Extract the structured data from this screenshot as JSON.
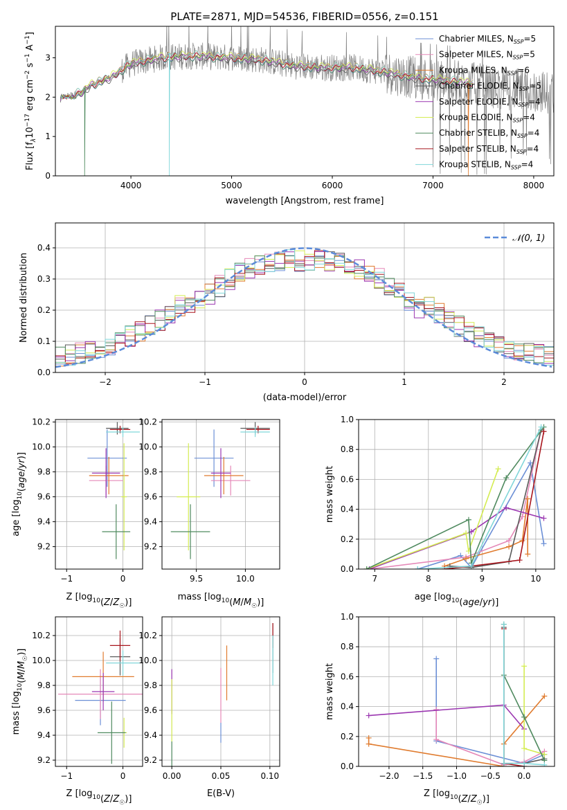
{
  "figure": {
    "title": "PLATE=2871, MJD=54536, FIBERID=0556, z=0.151"
  },
  "palette": {
    "Chabrier MILES": "#6b8fd6",
    "Salpeter MILES": "#e588b8",
    "Kroupa MILES": "#e07b2e",
    "Chabrier ELODIE": "#5a5a5a",
    "Salpeter ELODIE": "#9a35b0",
    "Kroupa ELODIE": "#d4ec52",
    "Chabrier STELIB": "#4f8a5f",
    "Salpeter STELIB": "#a8141c",
    "Kroupa STELIB": "#7fd6d9",
    "data": "#7f7f7f",
    "normal": "#5b8bd9"
  },
  "chart_data": [
    {
      "id": "spectrum",
      "type": "line",
      "xlabel": "wavelength [Angstrom, rest frame]",
      "ylabel_parts": [
        "Flux [f",
        "λ",
        "10",
        "−17",
        " erg cm",
        "−2",
        " s",
        "−1",
        " A",
        "−1",
        "]"
      ],
      "xlim": [
        3250,
        8200
      ],
      "ylim": [
        0,
        3.8
      ],
      "xticks": [
        4000,
        5000,
        6000,
        7000,
        8000
      ],
      "yticks": [
        0,
        1,
        2,
        3
      ],
      "legend_position": "upper right",
      "legend": [
        {
          "model": "Chabrier MILES",
          "n": 5
        },
        {
          "model": "Salpeter MILES",
          "n": 5
        },
        {
          "model": "Kroupa MILES",
          "n": 6
        },
        {
          "model": "Chabrier ELODIE",
          "n": 5
        },
        {
          "model": "Salpeter ELODIE",
          "n": 4
        },
        {
          "model": "Kroupa ELODIE",
          "n": 4
        },
        {
          "model": "Chabrier STELIB",
          "n": 4
        },
        {
          "model": "Salpeter STELIB",
          "n": 4
        },
        {
          "model": "Kroupa STELIB",
          "n": 4
        }
      ],
      "continuum": {
        "x": [
          3300,
          3500,
          3600,
          3800,
          4000,
          4300,
          4600,
          5000,
          5300,
          5600,
          5900,
          6200,
          6500,
          6800,
          7000,
          7200,
          7400,
          7600,
          8000,
          8200
        ],
        "y": [
          2.0,
          2.1,
          2.3,
          2.5,
          2.85,
          3.0,
          3.05,
          3.0,
          2.95,
          2.8,
          2.75,
          2.75,
          2.65,
          2.5,
          2.45,
          2.4,
          2.35,
          2.25,
          2.15,
          2.1
        ]
      },
      "model_range": [
        3300,
        7400
      ],
      "model_dips": [
        {
          "model": "Salpeter STELIB",
          "x": 3520,
          "y": 0.0
        },
        {
          "model": "Chabrier STELIB",
          "x": 3540,
          "y": 0.0
        },
        {
          "model": "Kroupa ELODIE",
          "x": 3920,
          "y": 0.0
        },
        {
          "model": "Kroupa STELIB",
          "x": 4380,
          "y": 0.0
        },
        {
          "model": "Kroupa MILES",
          "x": 6800,
          "y": 0.1
        },
        {
          "model": "Kroupa MILES",
          "x": 7350,
          "y": 0.0
        }
      ]
    },
    {
      "id": "residuals",
      "type": "histogram",
      "xlabel": "(data-model)/error",
      "ylabel": "Normed distribution",
      "xlim": [
        -2.5,
        2.5
      ],
      "ylim": [
        0,
        0.48
      ],
      "xticks": [
        -2,
        -1,
        0,
        1,
        2
      ],
      "yticks": [
        0.0,
        0.1,
        0.2,
        0.3,
        0.4
      ],
      "grid": true,
      "legend_position": "upper right",
      "normal_label": "𝒩(0, 1)",
      "bin_width": 0.1
    },
    {
      "id": "age-vs-Z",
      "type": "errorbar",
      "xlabel": "Z [log10(Z/Z☉)]",
      "ylabel": "age [log10(age/yr)]",
      "xlim": [
        -1.2,
        0.35
      ],
      "ylim": [
        9.02,
        10.22
      ],
      "xticks": [
        -1,
        0
      ],
      "yticks": [
        9.2,
        9.4,
        9.6,
        9.8,
        10.0,
        10.2
      ],
      "points": [
        {
          "model": "Chabrier MILES",
          "x": -0.28,
          "xerr": 0.35,
          "y": 9.91,
          "yerr": 0.23
        },
        {
          "model": "Salpeter MILES",
          "x": -0.3,
          "xerr": 0.3,
          "y": 9.73,
          "yerr": 0.12
        },
        {
          "model": "Kroupa MILES",
          "x": -0.25,
          "xerr": 0.35,
          "y": 9.77,
          "yerr": 0.15
        },
        {
          "model": "Chabrier ELODIE",
          "x": -0.1,
          "xerr": 0.2,
          "y": 10.15,
          "yerr": 0.05
        },
        {
          "model": "Salpeter ELODIE",
          "x": -0.3,
          "xerr": 0.25,
          "y": 9.79,
          "yerr": 0.2
        },
        {
          "model": "Kroupa ELODIE",
          "x": 0.02,
          "xerr": 0.05,
          "y": 9.6,
          "yerr": 0.43
        },
        {
          "model": "Chabrier STELIB",
          "x": -0.12,
          "xerr": 0.25,
          "y": 9.32,
          "yerr": 0.22
        },
        {
          "model": "Salpeter STELIB",
          "x": -0.05,
          "xerr": 0.18,
          "y": 10.14,
          "yerr": 0.03
        },
        {
          "model": "Kroupa STELIB",
          "x": 0.0,
          "xerr": 0.3,
          "y": 10.12,
          "yerr": 0.04
        }
      ]
    },
    {
      "id": "age-vs-mass",
      "type": "errorbar",
      "xlabel": "mass [log10(M/M☉)]",
      "ylabel": "",
      "xlim": [
        9.15,
        10.35
      ],
      "ylim": [
        9.02,
        10.22
      ],
      "xticks": [
        9.5,
        10.0
      ],
      "yticks": [
        9.2,
        9.4,
        9.6,
        9.8,
        10.0,
        10.2
      ],
      "points": [
        {
          "model": "Chabrier MILES",
          "x": 9.68,
          "xerr": 0.2,
          "y": 9.91,
          "yerr": 0.23
        },
        {
          "model": "Salpeter MILES",
          "x": 9.85,
          "xerr": 0.2,
          "y": 9.73,
          "yerr": 0.12
        },
        {
          "model": "Kroupa MILES",
          "x": 9.78,
          "xerr": 0.2,
          "y": 9.77,
          "yerr": 0.15
        },
        {
          "model": "Chabrier ELODIE",
          "x": 10.1,
          "xerr": 0.15,
          "y": 10.15,
          "yerr": 0.05
        },
        {
          "model": "Salpeter ELODIE",
          "x": 9.75,
          "xerr": 0.1,
          "y": 9.79,
          "yerr": 0.2
        },
        {
          "model": "Kroupa ELODIE",
          "x": 9.42,
          "xerr": 0.12,
          "y": 9.6,
          "yerr": 0.43
        },
        {
          "model": "Chabrier STELIB",
          "x": 9.44,
          "xerr": 0.2,
          "y": 9.32,
          "yerr": 0.22
        },
        {
          "model": "Salpeter STELIB",
          "x": 10.13,
          "xerr": 0.12,
          "y": 10.14,
          "yerr": 0.03
        },
        {
          "model": "Kroupa STELIB",
          "x": 10.1,
          "xerr": 0.15,
          "y": 10.12,
          "yerr": 0.04
        }
      ]
    },
    {
      "id": "weight-vs-age",
      "type": "line",
      "xlabel": "age [log10(age/yr)]",
      "ylabel": "mass weight",
      "xlim": [
        6.7,
        10.35
      ],
      "ylim": [
        0,
        1.0
      ],
      "xticks": [
        7,
        8,
        9,
        10
      ],
      "yticks": [
        0.0,
        0.2,
        0.4,
        0.6,
        0.8,
        1.0
      ],
      "grid": true,
      "series": [
        {
          "model": "Chabrier MILES",
          "x": [
            7.8,
            8.6,
            8.8,
            9.9,
            10.15
          ],
          "y": [
            0.0,
            0.09,
            0.01,
            0.71,
            0.17
          ]
        },
        {
          "model": "Salpeter MILES",
          "x": [
            6.9,
            8.7,
            9.5,
            9.75,
            10.1
          ],
          "y": [
            0.0,
            0.08,
            0.19,
            0.35,
            0.93
          ]
        },
        {
          "model": "Kroupa MILES",
          "x": [
            8.3,
            8.7,
            9.5,
            9.75,
            9.85,
            9.85
          ],
          "y": [
            0.02,
            0.07,
            0.15,
            0.19,
            0.47,
            0.1
          ]
        },
        {
          "model": "Chabrier ELODIE",
          "x": [
            8.4,
            8.8,
            9.5,
            10.1
          ],
          "y": [
            0.02,
            0.01,
            0.05,
            0.93
          ]
        },
        {
          "model": "Salpeter ELODIE",
          "x": [
            6.9,
            8.8,
            9.45,
            10.15
          ],
          "y": [
            0.0,
            0.25,
            0.41,
            0.34
          ]
        },
        {
          "model": "Kroupa ELODIE",
          "x": [
            6.85,
            8.7,
            8.75,
            9.3
          ],
          "y": [
            0.0,
            0.24,
            0.12,
            0.67
          ]
        },
        {
          "model": "Chabrier STELIB",
          "x": [
            6.85,
            8.75,
            8.8,
            9.45,
            10.15
          ],
          "y": [
            0.0,
            0.33,
            0.04,
            0.61,
            0.95
          ]
        },
        {
          "model": "Salpeter STELIB",
          "x": [
            8.3,
            8.8,
            9.7,
            10.15
          ],
          "y": [
            0.0,
            0.02,
            0.06,
            0.92
          ]
        },
        {
          "model": "Kroupa STELIB",
          "x": [
            7.8,
            8.8,
            10.1
          ],
          "y": [
            0.0,
            0.02,
            0.95
          ]
        }
      ]
    },
    {
      "id": "mass-vs-Z",
      "type": "errorbar",
      "xlabel": "Z [log10(Z/Z☉)]",
      "ylabel": "mass [log10(M/M☉)]",
      "xlim": [
        -1.2,
        0.35
      ],
      "ylim": [
        9.15,
        10.35
      ],
      "xticks": [
        -1,
        0
      ],
      "yticks": [
        9.2,
        9.4,
        9.6,
        9.8,
        10.0,
        10.2
      ],
      "points": [
        {
          "model": "Chabrier MILES",
          "x": -0.4,
          "xerr": 0.45,
          "y": 9.68,
          "yerr": 0.2
        },
        {
          "model": "Salpeter MILES",
          "x": -0.4,
          "xerr": 0.75,
          "y": 9.73,
          "yerr": 0.2
        },
        {
          "model": "Kroupa MILES",
          "x": -0.35,
          "xerr": 0.55,
          "y": 9.87,
          "yerr": 0.2
        },
        {
          "model": "Chabrier ELODIE",
          "x": -0.05,
          "xerr": 0.18,
          "y": 10.03,
          "yerr": 0.15
        },
        {
          "model": "Salpeter ELODIE",
          "x": -0.35,
          "xerr": 0.2,
          "y": 9.75,
          "yerr": 0.15
        },
        {
          "model": "Kroupa ELODIE",
          "x": 0.02,
          "xerr": 0.05,
          "y": 9.42,
          "yerr": 0.12
        },
        {
          "model": "Chabrier STELIB",
          "x": -0.2,
          "xerr": 0.25,
          "y": 9.42,
          "yerr": 0.25
        },
        {
          "model": "Salpeter STELIB",
          "x": -0.05,
          "xerr": 0.18,
          "y": 10.12,
          "yerr": 0.12
        },
        {
          "model": "Kroupa STELIB",
          "x": 0.0,
          "xerr": 0.3,
          "y": 9.98,
          "yerr": 0.1
        }
      ]
    },
    {
      "id": "mass-vs-ebv",
      "type": "errorbar",
      "xlabel": "E(B-V)",
      "ylabel": "",
      "xlim": [
        -0.01,
        0.11
      ],
      "ylim": [
        9.15,
        10.35
      ],
      "xticks": [
        0.0,
        0.05,
        0.1
      ],
      "yticks": [
        9.2,
        9.4,
        9.6,
        9.8,
        10.0,
        10.2
      ],
      "points": [
        {
          "model": "Chabrier MILES",
          "x": 0.05,
          "xerr": 0,
          "y": 9.42,
          "yerr": 0.08
        },
        {
          "model": "Salpeter MILES",
          "x": 0.05,
          "xerr": 0,
          "y": 9.72,
          "yerr": 0.22
        },
        {
          "model": "Kroupa MILES",
          "x": 0.056,
          "xerr": 0,
          "y": 9.9,
          "yerr": 0.22
        },
        {
          "model": "Chabrier ELODIE",
          "x": 0.103,
          "xerr": 0,
          "y": 10.1,
          "yerr": 0.2
        },
        {
          "model": "Salpeter ELODIE",
          "x": 0.0,
          "xerr": 0,
          "y": 9.75,
          "yerr": 0.18
        },
        {
          "model": "Kroupa ELODIE",
          "x": 0.0,
          "xerr": 0,
          "y": 9.6,
          "yerr": 0.25
        },
        {
          "model": "Chabrier STELIB",
          "x": 0.0,
          "xerr": 0,
          "y": 9.25,
          "yerr": 0.1
        },
        {
          "model": "Salpeter STELIB",
          "x": 0.103,
          "xerr": 0,
          "y": 10.2,
          "yerr": 0.1
        },
        {
          "model": "Kroupa STELIB",
          "x": 0.103,
          "xerr": 0,
          "y": 10.0,
          "yerr": 0.2
        }
      ]
    },
    {
      "id": "weight-vs-Z",
      "type": "line",
      "xlabel": "Z [log10(Z/Z☉)]",
      "ylabel": "mass weight",
      "xlim": [
        -2.45,
        0.45
      ],
      "ylim": [
        0,
        1.0
      ],
      "xticks": [
        -2.0,
        -1.5,
        -1.0,
        -0.5,
        0.0
      ],
      "yticks": [
        0.0,
        0.2,
        0.4,
        0.6,
        0.8,
        1.0
      ],
      "grid": true,
      "series": [
        {
          "model": "Chabrier MILES",
          "x": [
            -1.3,
            -1.3,
            0.0,
            0.3
          ],
          "y": [
            0.72,
            0.17,
            0.02,
            0.08
          ]
        },
        {
          "model": "Salpeter MILES",
          "x": [
            -1.3,
            -1.3,
            -0.3,
            0.0,
            0.3
          ],
          "y": [
            0.38,
            0.18,
            0.01,
            0.03,
            0.1
          ]
        },
        {
          "model": "Kroupa MILES",
          "x": [
            -2.3,
            -2.3,
            -0.3,
            -0.3,
            0.3
          ],
          "y": [
            0.19,
            0.15,
            0.0,
            0.15,
            0.47
          ]
        },
        {
          "model": "Chabrier ELODIE",
          "x": [
            -0.3,
            -0.3,
            0.0,
            0.3
          ],
          "y": [
            0.93,
            0.02,
            0.02,
            0.05
          ]
        },
        {
          "model": "Salpeter ELODIE",
          "x": [
            -2.3,
            -0.3,
            0.0
          ],
          "y": [
            0.34,
            0.41,
            0.25
          ]
        },
        {
          "model": "Kroupa ELODIE",
          "x": [
            0.0,
            0.0,
            0.3
          ],
          "y": [
            0.67,
            0.12,
            0.08
          ]
        },
        {
          "model": "Chabrier STELIB",
          "x": [
            -0.3,
            -0.3,
            0.0,
            0.3
          ],
          "y": [
            0.95,
            0.61,
            0.33,
            0.04
          ]
        },
        {
          "model": "Salpeter STELIB",
          "x": [
            -0.3,
            -0.3,
            0.0
          ],
          "y": [
            0.92,
            0.02,
            0.0
          ]
        },
        {
          "model": "Kroupa STELIB",
          "x": [
            -0.3,
            -0.3,
            0.0,
            0.3
          ],
          "y": [
            0.95,
            0.02,
            0.02,
            0.01
          ]
        }
      ]
    }
  ]
}
